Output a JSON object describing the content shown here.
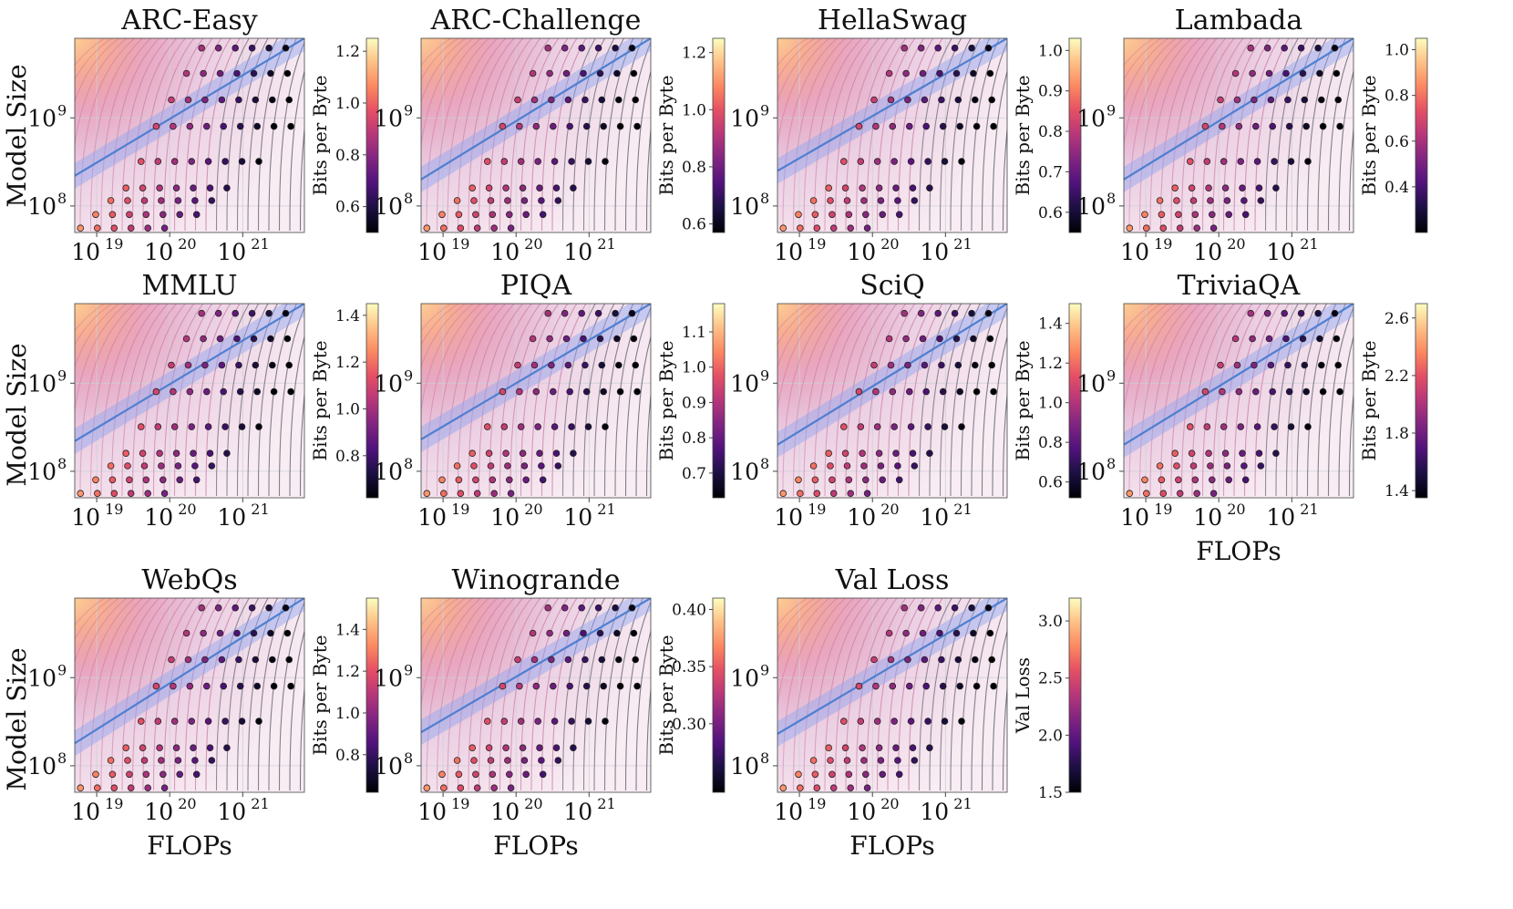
{
  "figure": {
    "shared_xlabel": "FLOPs",
    "shared_ylabel": "Model Size",
    "x_ticks": [
      {
        "base": "10",
        "exp": "19"
      },
      {
        "base": "10",
        "exp": "20"
      },
      {
        "base": "10",
        "exp": "21"
      }
    ],
    "y_ticks": [
      {
        "base": "10",
        "exp": "9"
      },
      {
        "base": "10",
        "exp": "8"
      }
    ],
    "colormap": "magma",
    "fit_line_color": "#4f7fd0",
    "fit_band_color": "#8fa3f0",
    "contour_color": "#5c5c6e"
  },
  "chart_data": [
    {
      "type": "scatter",
      "title": "ARC-Easy",
      "xscale": "log",
      "yscale": "log",
      "xlim": [
        5e+18,
        7e+21
      ],
      "ylim": [
        50000000.0,
        8000000000.0
      ],
      "colorbar_label": "Bits per Byte",
      "colorbar_ticks": [
        "1.2",
        "1.0",
        "0.8",
        "0.6"
      ],
      "colorbar_tick_values": [
        1.2,
        1.0,
        0.8,
        0.6
      ],
      "color_range": [
        0.5,
        1.25
      ],
      "fit_line": {
        "x": [
          5e+18,
          7e+21
        ],
        "y": [
          220000000.0,
          8000000000.0
        ]
      }
    },
    {
      "type": "scatter",
      "title": "ARC-Challenge",
      "xscale": "log",
      "yscale": "log",
      "xlim": [
        5e+18,
        7e+21
      ],
      "ylim": [
        50000000.0,
        8000000000.0
      ],
      "colorbar_label": "Bits per Byte",
      "colorbar_ticks": [
        "1.2",
        "1.0",
        "0.8",
        "0.6"
      ],
      "colorbar_tick_values": [
        1.2,
        1.0,
        0.8,
        0.6
      ],
      "color_range": [
        0.57,
        1.25
      ],
      "fit_line": {
        "x": [
          5e+18,
          7e+21
        ],
        "y": [
          200000000.0,
          8000000000.0
        ]
      }
    },
    {
      "type": "scatter",
      "title": "HellaSwag",
      "xscale": "log",
      "yscale": "log",
      "xlim": [
        5e+18,
        7e+21
      ],
      "ylim": [
        50000000.0,
        8000000000.0
      ],
      "colorbar_label": "Bits per Byte",
      "colorbar_ticks": [
        "1.0",
        "0.9",
        "0.8",
        "0.7",
        "0.6"
      ],
      "colorbar_tick_values": [
        1.0,
        0.9,
        0.8,
        0.7,
        0.6
      ],
      "color_range": [
        0.55,
        1.03
      ],
      "fit_line": {
        "x": [
          5e+18,
          7e+21
        ],
        "y": [
          250000000.0,
          8000000000.0
        ]
      }
    },
    {
      "type": "scatter",
      "title": "Lambada",
      "xscale": "log",
      "yscale": "log",
      "xlim": [
        5e+18,
        7e+21
      ],
      "ylim": [
        50000000.0,
        8000000000.0
      ],
      "colorbar_label": "Bits per Byte",
      "colorbar_ticks": [
        "1.0",
        "0.8",
        "0.6",
        "0.4"
      ],
      "colorbar_tick_values": [
        1.0,
        0.8,
        0.6,
        0.4
      ],
      "color_range": [
        0.2,
        1.05
      ],
      "fit_line": {
        "x": [
          5e+18,
          7e+21
        ],
        "y": [
          200000000.0,
          8000000000.0
        ]
      }
    },
    {
      "type": "scatter",
      "title": "MMLU",
      "xscale": "log",
      "yscale": "log",
      "xlim": [
        5e+18,
        7e+21
      ],
      "ylim": [
        50000000.0,
        8000000000.0
      ],
      "colorbar_label": "Bits per Byte",
      "colorbar_ticks": [
        "1.4",
        "1.2",
        "1.0",
        "0.8"
      ],
      "colorbar_tick_values": [
        1.4,
        1.2,
        1.0,
        0.8
      ],
      "color_range": [
        0.62,
        1.45
      ],
      "fit_line": {
        "x": [
          5e+18,
          7e+21
        ],
        "y": [
          220000000.0,
          8000000000.0
        ]
      }
    },
    {
      "type": "scatter",
      "title": "PIQA",
      "xscale": "log",
      "yscale": "log",
      "xlim": [
        5e+18,
        7e+21
      ],
      "ylim": [
        50000000.0,
        8000000000.0
      ],
      "colorbar_label": "Bits per Byte",
      "colorbar_ticks": [
        "1.1",
        "1.0",
        "0.9",
        "0.8",
        "0.7"
      ],
      "colorbar_tick_values": [
        1.1,
        1.0,
        0.9,
        0.8,
        0.7
      ],
      "color_range": [
        0.63,
        1.18
      ],
      "fit_line": {
        "x": [
          5e+18,
          7e+21
        ],
        "y": [
          230000000.0,
          8000000000.0
        ]
      }
    },
    {
      "type": "scatter",
      "title": "SciQ",
      "xscale": "log",
      "yscale": "log",
      "xlim": [
        5e+18,
        7e+21
      ],
      "ylim": [
        50000000.0,
        8000000000.0
      ],
      "colorbar_label": "Bits per Byte",
      "colorbar_ticks": [
        "1.4",
        "1.2",
        "1.0",
        "0.8",
        "0.6"
      ],
      "colorbar_tick_values": [
        1.4,
        1.2,
        1.0,
        0.8,
        0.6
      ],
      "color_range": [
        0.52,
        1.5
      ],
      "fit_line": {
        "x": [
          5e+18,
          7e+21
        ],
        "y": [
          200000000.0,
          8000000000.0
        ]
      }
    },
    {
      "type": "scatter",
      "title": "TriviaQA",
      "xscale": "log",
      "yscale": "log",
      "xlim": [
        5e+18,
        7e+21
      ],
      "ylim": [
        50000000.0,
        8000000000.0
      ],
      "colorbar_label": "Bits per Byte",
      "colorbar_ticks": [
        "2.6",
        "2.2",
        "1.8",
        "1.4"
      ],
      "colorbar_tick_values": [
        2.6,
        2.2,
        1.8,
        1.4
      ],
      "color_range": [
        1.35,
        2.7
      ],
      "fit_line": {
        "x": [
          5e+18,
          7e+21
        ],
        "y": [
          200000000.0,
          8000000000.0
        ]
      },
      "xlabel": "FLOPs"
    },
    {
      "type": "scatter",
      "title": "WebQs",
      "xscale": "log",
      "yscale": "log",
      "xlim": [
        5e+18,
        7e+21
      ],
      "ylim": [
        50000000.0,
        8000000000.0
      ],
      "colorbar_label": "Bits per Byte",
      "colorbar_ticks": [
        "1.4",
        "1.2",
        "1.0",
        "0.8"
      ],
      "colorbar_tick_values": [
        1.4,
        1.2,
        1.0,
        0.8
      ],
      "color_range": [
        0.62,
        1.55
      ],
      "fit_line": {
        "x": [
          5e+18,
          7e+21
        ],
        "y": [
          180000000.0,
          8000000000.0
        ]
      },
      "xlabel": "FLOPs"
    },
    {
      "type": "scatter",
      "title": "Winogrande",
      "xscale": "log",
      "yscale": "log",
      "xlim": [
        5e+18,
        7e+21
      ],
      "ylim": [
        50000000.0,
        8000000000.0
      ],
      "colorbar_label": "Bits per Byte",
      "colorbar_ticks": [
        "0.40",
        "0.35",
        "0.30"
      ],
      "colorbar_tick_values": [
        0.4,
        0.35,
        0.3
      ],
      "color_range": [
        0.24,
        0.41
      ],
      "fit_line": {
        "x": [
          5e+18,
          7e+21
        ],
        "y": [
          240000000.0,
          8000000000.0
        ]
      },
      "xlabel": "FLOPs"
    },
    {
      "type": "scatter",
      "title": "Val Loss",
      "xscale": "log",
      "yscale": "log",
      "xlim": [
        5e+18,
        7e+21
      ],
      "ylim": [
        50000000.0,
        8000000000.0
      ],
      "colorbar_label": "Val Loss",
      "colorbar_ticks": [
        "3.0",
        "2.5",
        "2.0",
        "1.5"
      ],
      "colorbar_tick_values": [
        3.0,
        2.5,
        2.0,
        1.5
      ],
      "color_range": [
        1.5,
        3.2
      ],
      "fit_line": {
        "x": [
          5e+18,
          7e+21
        ],
        "y": [
          230000000.0,
          8000000000.0
        ]
      },
      "xlabel": "FLOPs"
    }
  ]
}
